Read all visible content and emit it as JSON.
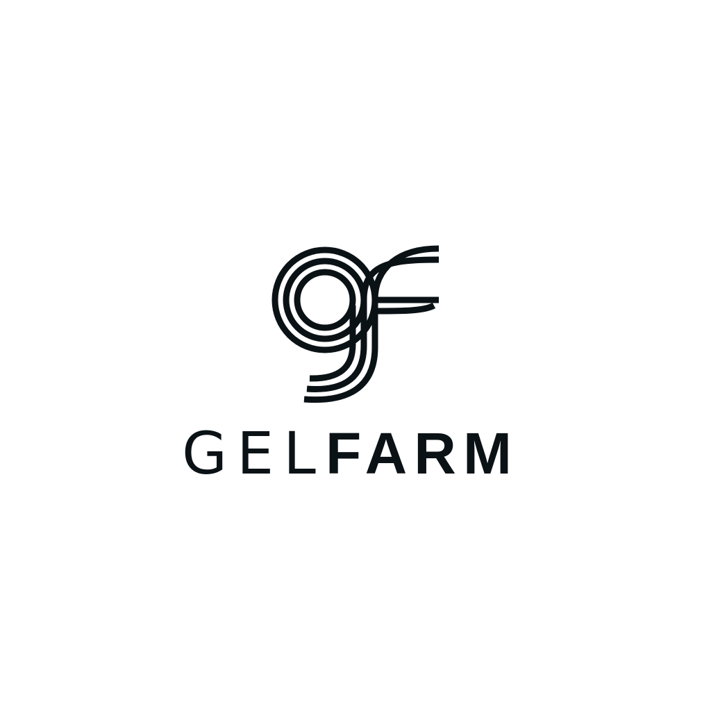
{
  "logo": {
    "wordmark_light": "GEL",
    "wordmark_bold": "FARM",
    "mark_icon": "gf-monogram-icon",
    "ink_color": "#0b1216",
    "background_color": "#ffffff"
  }
}
